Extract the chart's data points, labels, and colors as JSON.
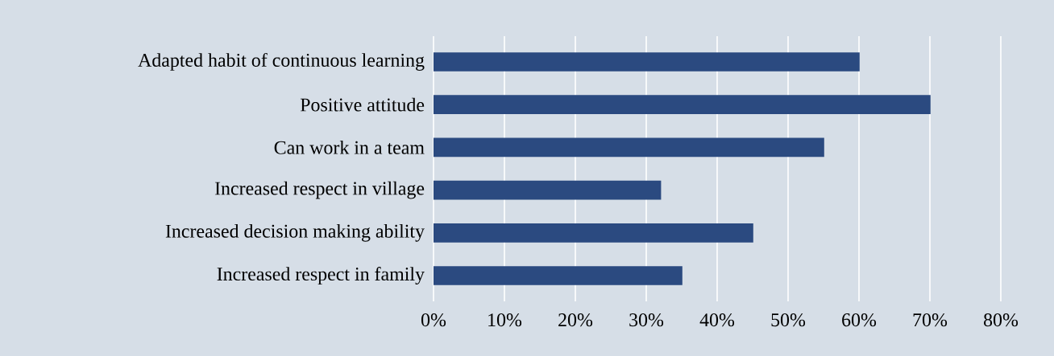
{
  "chart_data": {
    "type": "bar",
    "orientation": "horizontal",
    "categories": [
      "Adapted habit of continuous learning",
      "Positive attitude",
      "Can work in a team",
      "Increased respect in village",
      "Increased decision making ability",
      "Increased respect in family"
    ],
    "values": [
      60,
      70,
      55,
      32,
      45,
      35
    ],
    "color": "#2b4a80",
    "xlim": [
      0,
      80
    ],
    "xticks": [
      {
        "value": 0,
        "label": "0%"
      },
      {
        "value": 10,
        "label": "10%"
      },
      {
        "value": 20,
        "label": "20%"
      },
      {
        "value": 30,
        "label": "30%"
      },
      {
        "value": 40,
        "label": "40%"
      },
      {
        "value": 50,
        "label": "50%"
      },
      {
        "value": 60,
        "label": "60%"
      },
      {
        "value": 70,
        "label": "70%"
      },
      {
        "value": 80,
        "label": "80%"
      }
    ],
    "grid": "x"
  }
}
